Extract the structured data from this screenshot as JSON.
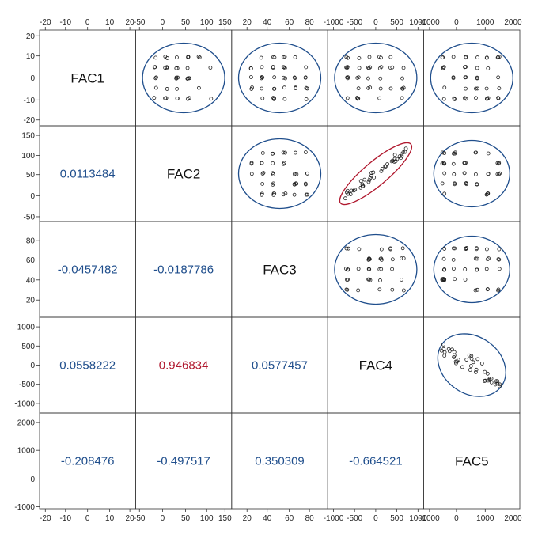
{
  "chart_data": {
    "type": "scatter-matrix",
    "variables": [
      "FAC1",
      "FAC2",
      "FAC3",
      "FAC4",
      "FAC5"
    ],
    "axis_ticks": [
      [
        "-20",
        "-10",
        "0",
        "10",
        "20"
      ],
      [
        "-50",
        "0",
        "50",
        "100",
        "150"
      ],
      [
        "20",
        "40",
        "60",
        "80"
      ],
      [
        "-1000",
        "-500",
        "0",
        "500",
        "1000"
      ],
      [
        "-1000",
        "0",
        "1000",
        "2000"
      ]
    ],
    "correlations": [
      {
        "row": 1,
        "col": 0,
        "value": "0.0113484",
        "color": "#1f4e8c"
      },
      {
        "row": 2,
        "col": 0,
        "value": "-0.0457482",
        "color": "#1f4e8c"
      },
      {
        "row": 2,
        "col": 1,
        "value": "-0.0187786",
        "color": "#1f4e8c"
      },
      {
        "row": 3,
        "col": 0,
        "value": "0.0558222",
        "color": "#1f4e8c"
      },
      {
        "row": 3,
        "col": 1,
        "value": "0.946834",
        "color": "#b0182e"
      },
      {
        "row": 3,
        "col": 2,
        "value": "0.0577457",
        "color": "#1f4e8c"
      },
      {
        "row": 4,
        "col": 0,
        "value": "-0.208476",
        "color": "#1f4e8c"
      },
      {
        "row": 4,
        "col": 1,
        "value": "-0.497517",
        "color": "#1f4e8c"
      },
      {
        "row": 4,
        "col": 2,
        "value": "0.350309",
        "color": "#1f4e8c"
      },
      {
        "row": 4,
        "col": 3,
        "value": "-0.664521",
        "color": "#1f4e8c"
      }
    ],
    "ellipse_colors": {
      "normal": "#1f4e8c",
      "strong": "#b0182e"
    },
    "grid": false
  }
}
